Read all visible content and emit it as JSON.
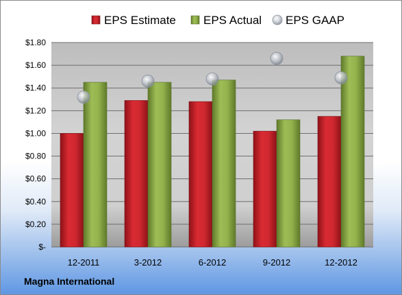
{
  "footer_label": "Magna International",
  "chart_data": {
    "type": "bar",
    "title": "",
    "xlabel": "",
    "ylabel": "",
    "categories": [
      "12-2011",
      "3-2012",
      "6-2012",
      "9-2012",
      "12-2012"
    ],
    "series": [
      {
        "name": "EPS Estimate",
        "kind": "bar",
        "color": "#c8242c",
        "values": [
          1.0,
          1.29,
          1.28,
          1.02,
          1.15
        ]
      },
      {
        "name": "EPS Actual",
        "kind": "bar",
        "color": "#8fae46",
        "values": [
          1.45,
          1.45,
          1.47,
          1.12,
          1.68
        ]
      },
      {
        "name": "EPS GAAP",
        "kind": "marker",
        "color": "#a8b0bc",
        "values": [
          1.32,
          1.46,
          1.48,
          1.66,
          1.49
        ]
      }
    ],
    "ylim": [
      0,
      1.8
    ],
    "y_ticks": [
      0,
      0.2,
      0.4,
      0.6,
      0.8,
      1.0,
      1.2,
      1.4,
      1.6,
      1.8
    ],
    "y_tick_labels": [
      "$-",
      "$0.20",
      "$0.40",
      "$0.60",
      "$0.80",
      "$1.00",
      "$1.20",
      "$1.40",
      "$1.60",
      "$1.80"
    ],
    "grid": true,
    "legend_position": "top"
  }
}
